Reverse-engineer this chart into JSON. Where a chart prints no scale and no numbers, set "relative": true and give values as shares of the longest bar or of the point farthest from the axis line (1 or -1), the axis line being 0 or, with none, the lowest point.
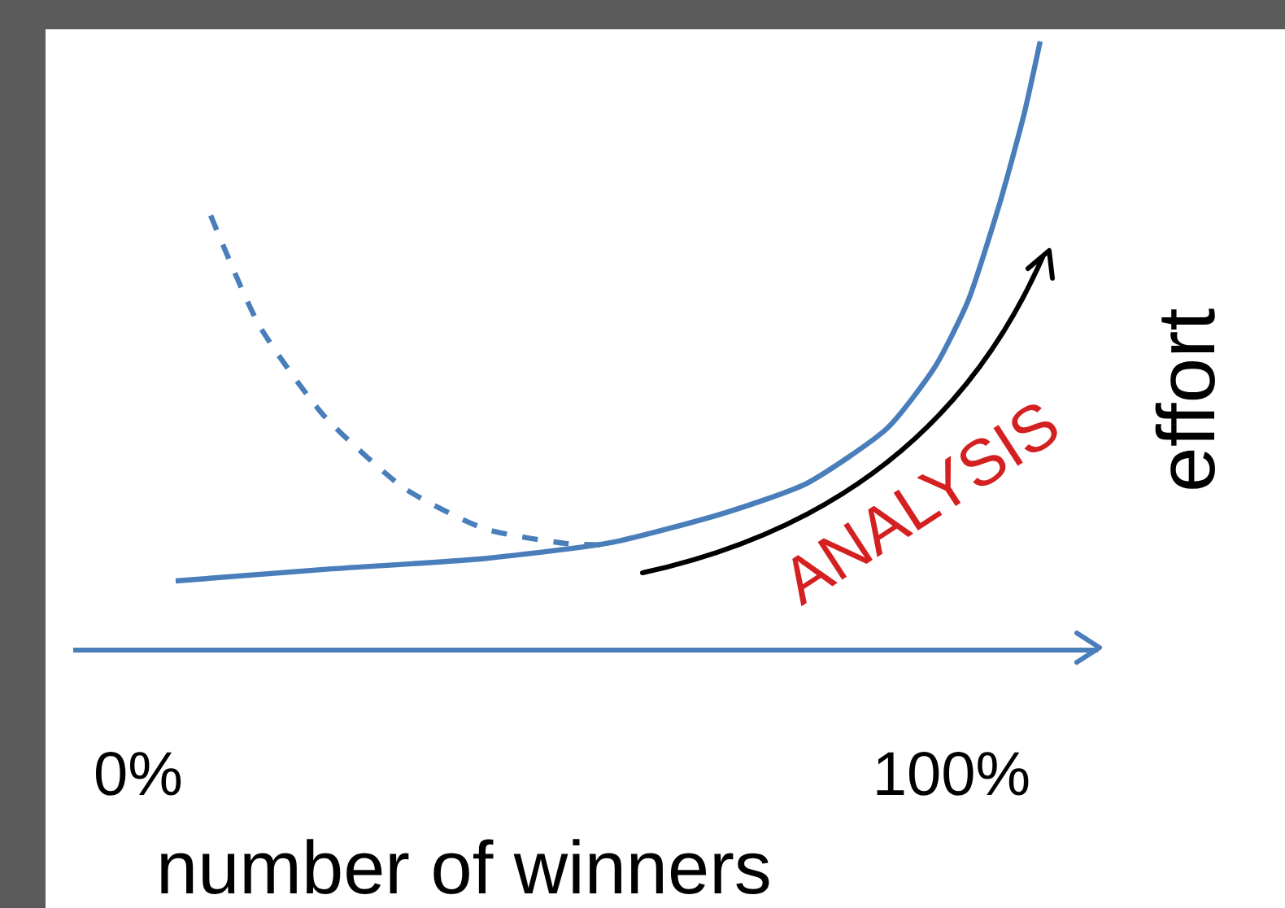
{
  "chart_data": {
    "type": "line",
    "relative": true,
    "xlabel": "number of winners",
    "ylabel": "effort",
    "annotations": [
      "ANALYSIS"
    ],
    "xlim": [
      -8,
      118
    ],
    "xticks": [
      {
        "value": 0,
        "label": "0%"
      },
      {
        "value": 100,
        "label": "100%"
      }
    ],
    "grid": false,
    "legend": false,
    "marker": "none",
    "tick_labels": "x",
    "series": [
      {
        "color": "#4a7ebb",
        "line_style": "solid",
        "x": [
          4.6,
          22.8,
          42.6,
          58.4,
          72.3,
          82.2,
          92.1,
          98.0,
          102.0,
          105.9,
          108.9,
          110.9
        ],
        "values": [
          0.11,
          0.129,
          0.147,
          0.174,
          0.223,
          0.271,
          0.362,
          0.464,
          0.571,
          0.732,
          0.879,
          1
        ]
      },
      {
        "color": "#4a7ebb",
        "line_style": "dashed",
        "x": [
          8.9,
          14.9,
          22.8,
          32.7,
          42.6,
          52.5,
          58.4
        ],
        "values": [
          0.713,
          0.531,
          0.383,
          0.263,
          0.196,
          0.172,
          0.169
        ]
      }
    ]
  }
}
